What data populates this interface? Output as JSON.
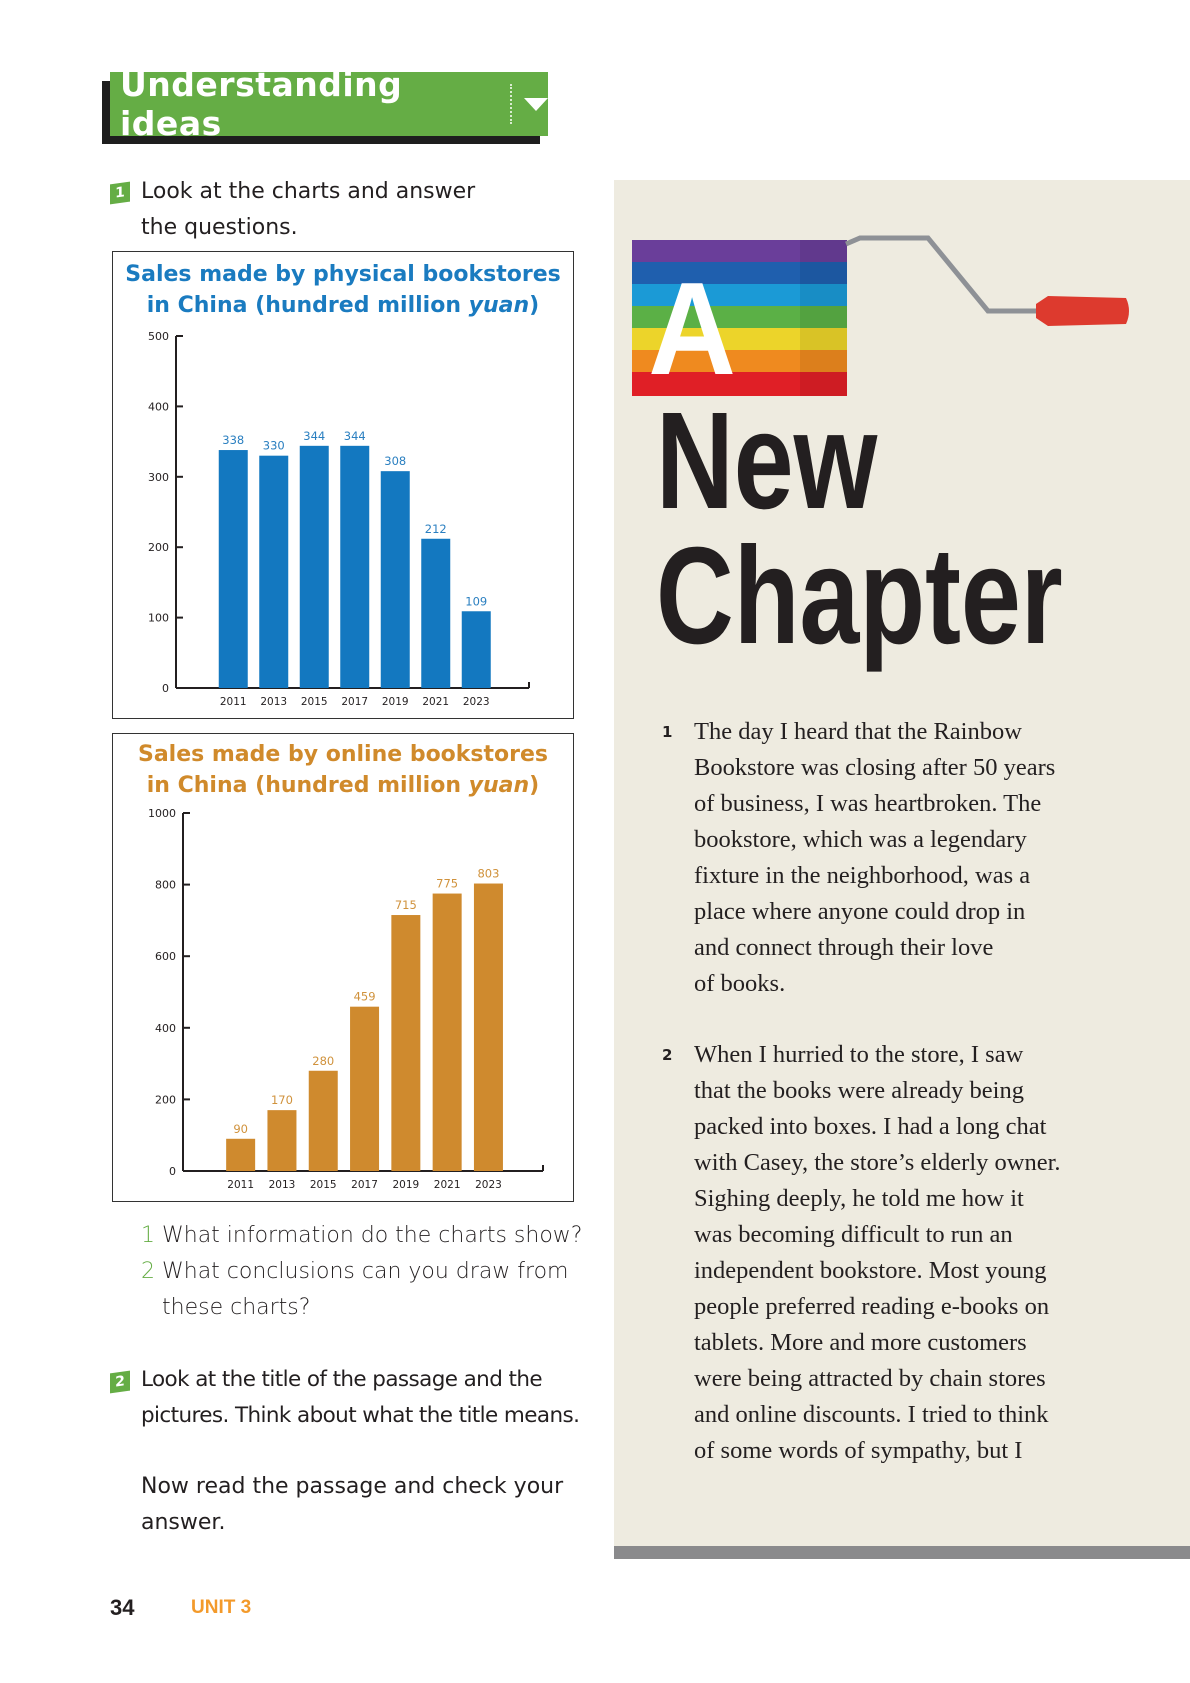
{
  "header": {
    "title": "Understanding ideas"
  },
  "task1": {
    "number": "1",
    "lines": [
      "Look at the charts and answer",
      "the questions."
    ]
  },
  "chart_data": [
    {
      "type": "bar",
      "title_line1": "Sales made by physical bookstores",
      "title_line2": "in China (hundred million ",
      "title_italic": "yuan",
      "title_close": ")",
      "categories": [
        "2011",
        "2013",
        "2015",
        "2017",
        "2019",
        "2021",
        "2023"
      ],
      "values": [
        338,
        330,
        344,
        344,
        308,
        212,
        109
      ],
      "yticks": [
        0,
        100,
        200,
        300,
        400,
        500
      ],
      "ylim": [
        0,
        500
      ],
      "color": "#1378c0",
      "label_color": "#2a7fc0",
      "grid": false
    },
    {
      "type": "bar",
      "title_line1": "Sales made by online bookstores",
      "title_line2": "in China (hundred million ",
      "title_italic": "yuan",
      "title_close": ")",
      "categories": [
        "2011",
        "2013",
        "2015",
        "2017",
        "2019",
        "2021",
        "2023"
      ],
      "values": [
        90,
        170,
        280,
        459,
        715,
        775,
        803
      ],
      "yticks": [
        0,
        200,
        400,
        600,
        800,
        1000
      ],
      "ylim": [
        0,
        1000
      ],
      "color": "#cf8a2e",
      "label_color": "#d0923c",
      "grid": false
    }
  ],
  "questions": [
    {
      "number": "1",
      "lines": [
        "What information do the charts show?"
      ]
    },
    {
      "number": "2",
      "lines": [
        "What conclusions can you draw from",
        "these charts?"
      ]
    }
  ],
  "task2": {
    "number": "2",
    "lines": [
      "Look at the title of the passage and the",
      "pictures. Think about what the title means."
    ],
    "follow_lines": [
      "Now read the passage and check your",
      "answer."
    ]
  },
  "footer": {
    "page_number": "34",
    "unit": "UNIT 3"
  },
  "passage": {
    "title_a": "A",
    "title_line1": "New",
    "title_line2": "Chapter",
    "paragraphs": [
      {
        "number": "1",
        "lines": [
          "The day I heard that the Rainbow",
          "Bookstore was closing after 50 years",
          "of business, I was heartbroken. The",
          "bookstore, which was a legendary",
          "fixture in the neighborhood, was a",
          "place where anyone could drop in",
          "and connect through their love",
          "of books."
        ]
      },
      {
        "number": "2",
        "lines": [
          "When I hurried to the store, I saw",
          "that the books were already being",
          "packed into boxes. I had a long chat",
          "with Casey, the store’s elderly owner.",
          "Sighing deeply, he told me how it",
          "was becoming difficult to run an",
          "independent bookstore. Most young",
          "people preferred reading e-books on",
          "tablets. More and more customers",
          "were being attracted by chain stores",
          "and online discounts. I tried to think",
          "of some words of sympathy, but I"
        ]
      }
    ]
  },
  "colors": {
    "green": "#65ad45",
    "blue": "#1378c0",
    "orange": "#cf8a2e",
    "panel": "#eeebe0",
    "unit": "#f39a2b"
  }
}
